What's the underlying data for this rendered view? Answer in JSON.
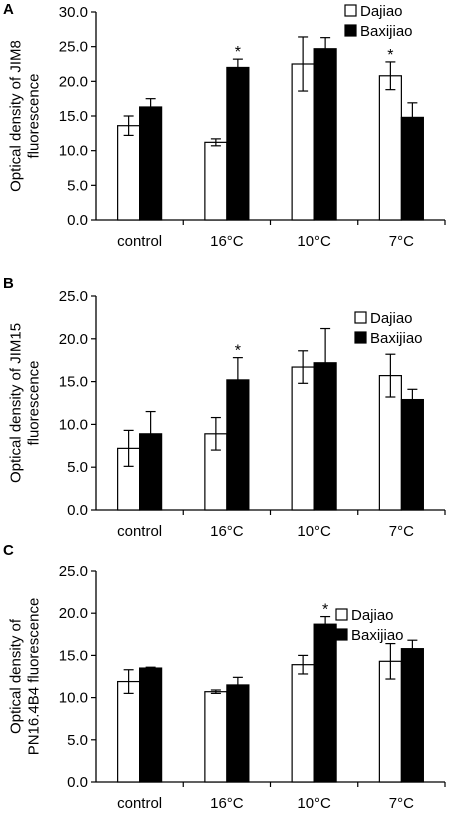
{
  "chart_data": [
    {
      "type": "bar",
      "panel": "A",
      "ylabel": [
        "Optical density of JIM8",
        "fluorescence"
      ],
      "categories": [
        "control",
        "16°C",
        "10°C",
        "7°C"
      ],
      "ylim": [
        0,
        30
      ],
      "yticks": [
        "0.0",
        "5.0",
        "10.0",
        "15.0",
        "20.0",
        "25.0",
        "30.0"
      ],
      "series": [
        {
          "name": "Dajiao",
          "values": [
            13.6,
            11.2,
            22.5,
            20.8
          ],
          "errors": [
            1.4,
            0.5,
            3.9,
            2.0
          ],
          "color": "#ffffff"
        },
        {
          "name": "Baxijiao",
          "values": [
            16.3,
            22.0,
            24.7,
            14.8
          ],
          "errors": [
            1.2,
            1.2,
            1.6,
            2.1
          ],
          "color": "#000000"
        }
      ],
      "significance": [
        {
          "category": "16°C",
          "series": "Baxijiao",
          "mark": "*"
        },
        {
          "category": "7°C",
          "series": "Dajiao",
          "mark": "*"
        }
      ],
      "legend": "top-right"
    },
    {
      "type": "bar",
      "panel": "B",
      "ylabel": [
        "Optical density of JIM15",
        "fluorescence"
      ],
      "categories": [
        "control",
        "16°C",
        "10°C",
        "7°C"
      ],
      "ylim": [
        0,
        25
      ],
      "yticks": [
        "0.0",
        "5.0",
        "10.0",
        "15.0",
        "20.0",
        "25.0"
      ],
      "series": [
        {
          "name": "Dajiao",
          "values": [
            7.2,
            8.9,
            16.7,
            15.7
          ],
          "errors": [
            2.1,
            1.9,
            1.9,
            2.5
          ],
          "color": "#ffffff"
        },
        {
          "name": "Baxijiao",
          "values": [
            8.9,
            15.2,
            17.2,
            12.9
          ],
          "errors": [
            2.6,
            2.6,
            4.0,
            1.2
          ],
          "color": "#000000"
        }
      ],
      "significance": [
        {
          "category": "16°C",
          "series": "Baxijiao",
          "mark": "*"
        }
      ],
      "legend": "top-right"
    },
    {
      "type": "bar",
      "panel": "C",
      "ylabel": [
        "Optical density of",
        "PN16.4B4 fluorescence"
      ],
      "categories": [
        "control",
        "16°C",
        "10°C",
        "7°C"
      ],
      "ylim": [
        0,
        25
      ],
      "yticks": [
        "0.0",
        "5.0",
        "10.0",
        "15.0",
        "20.0",
        "25.0"
      ],
      "series": [
        {
          "name": "Dajiao",
          "values": [
            11.9,
            10.7,
            13.9,
            14.3
          ],
          "errors": [
            1.4,
            0.2,
            1.1,
            2.1
          ],
          "color": "#ffffff"
        },
        {
          "name": "Baxijiao",
          "values": [
            13.5,
            11.5,
            18.7,
            15.8
          ],
          "errors": [
            0.1,
            0.9,
            0.9,
            1.0
          ],
          "color": "#000000"
        }
      ],
      "significance": [
        {
          "category": "10°C",
          "series": "Baxijiao",
          "mark": "*"
        }
      ],
      "legend": "top-right"
    }
  ]
}
